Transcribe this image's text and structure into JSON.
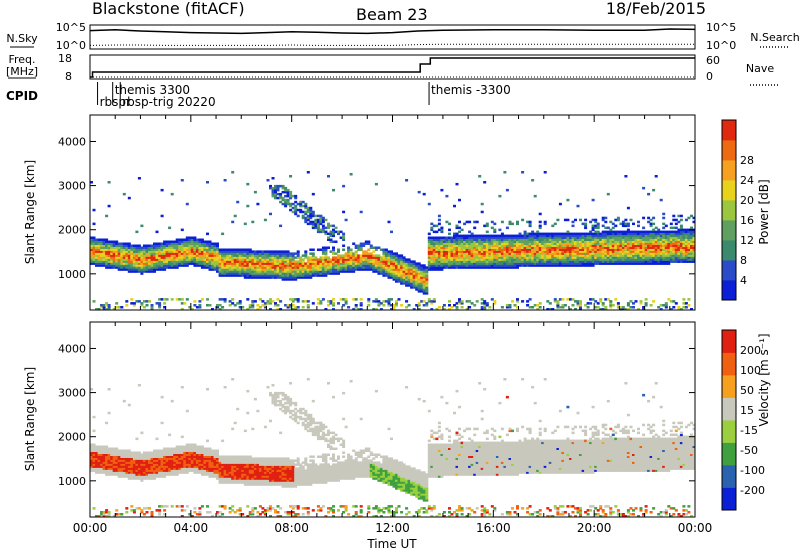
{
  "header": {
    "title": "Blackstone (fitACF)",
    "beam": "Beam 23",
    "date": "18/Feb/2015"
  },
  "chart_data": [
    {
      "type": "line",
      "title": "",
      "left_label": "N.Sky",
      "right_label": "N.Search",
      "y_ticks_left": [
        "10^5",
        "10^0"
      ],
      "y_ticks_right": [
        "10^5",
        "10^0"
      ],
      "x": [
        0,
        1,
        2,
        3,
        4,
        5,
        6,
        7,
        8,
        9,
        10,
        11,
        12,
        13,
        14,
        16,
        18,
        20,
        22,
        23,
        24
      ],
      "series": [
        {
          "name": "N.Sky",
          "values": [
            4.1,
            4.3,
            4.0,
            3.8,
            3.6,
            3.5,
            3.4,
            3.6,
            3.8,
            3.7,
            3.5,
            3.4,
            3.6,
            4.0,
            4.2,
            4.3,
            4.3,
            4.2,
            4.2,
            4.5,
            4.4
          ]
        },
        {
          "name": "N.Search",
          "values": [
            0.4,
            0.5,
            0.5,
            0.4,
            0.4,
            0.4,
            0.4,
            0.4,
            0.5,
            0.4,
            0.4,
            0.4,
            0.4,
            0.6,
            0.7,
            0.7,
            0.7,
            0.7,
            0.7,
            0.7,
            0.7
          ]
        }
      ]
    },
    {
      "type": "line",
      "left_label": "Freq.",
      "left_unit": "[MHz]",
      "right_label": "Nave",
      "y_ticks_left": [
        "18",
        "8"
      ],
      "y_ticks_right": [
        "60",
        "0"
      ],
      "x": [
        0,
        0.1,
        13.0,
        13.1,
        13.4,
        13.5,
        24.0
      ],
      "series": [
        {
          "name": "Freq.",
          "values": [
            8,
            10.5,
            10.5,
            14.5,
            14.5,
            17.5,
            17.5
          ]
        },
        {
          "name": "Nave",
          "values": [
            0,
            0,
            0,
            0,
            0,
            0,
            0
          ]
        }
      ]
    },
    {
      "type": "heatmap",
      "ylabel": "Slant Range [km]",
      "yticks": [
        1000,
        2000,
        3000,
        4000
      ],
      "ylim": [
        180,
        4600
      ],
      "xlim": [
        0,
        24
      ],
      "colorbar": {
        "label": "Power [dB]",
        "ticks": [
          "4",
          "8",
          "12",
          "16",
          "20",
          "24",
          "28"
        ],
        "range": [
          0,
          30
        ]
      }
    },
    {
      "type": "heatmap",
      "ylabel": "Slant Range [km]",
      "yticks": [
        1000,
        2000,
        3000,
        4000
      ],
      "ylim": [
        180,
        4600
      ],
      "xlim": [
        0,
        24
      ],
      "xlabel": "Time UT",
      "xticks": [
        "00:00",
        "04:00",
        "08:00",
        "12:00",
        "16:00",
        "20:00",
        "00:00"
      ],
      "colorbar": {
        "label": "Velocity [m s⁻¹]",
        "ticks": [
          "200",
          "100",
          "50",
          "15",
          "-15",
          "-50",
          "-100",
          "-200"
        ],
        "range": [
          -250,
          250
        ]
      }
    }
  ],
  "cpid": {
    "label": "CPID",
    "entries": [
      {
        "time": 0.3,
        "text": "rbspr",
        "row": 2
      },
      {
        "time": 0.9,
        "text": "themis 3300",
        "row": 1
      },
      {
        "time": 1.2,
        "text": "rbsp-trig 20220",
        "row": 2
      },
      {
        "time": 13.45,
        "text": "themis -3300",
        "row": 1
      }
    ]
  },
  "colors": {
    "power": [
      "#0a1fd6",
      "#2a4cc8",
      "#3c8a6e",
      "#5fa060",
      "#9bc640",
      "#e8d21c",
      "#f5a020",
      "#ee6a10",
      "#e02a10"
    ],
    "velocity": [
      "#e02010",
      "#f06010",
      "#f6a020",
      "#c8c8bc",
      "#9ad040",
      "#40a040",
      "#2a62b0",
      "#0a1fd6"
    ]
  }
}
